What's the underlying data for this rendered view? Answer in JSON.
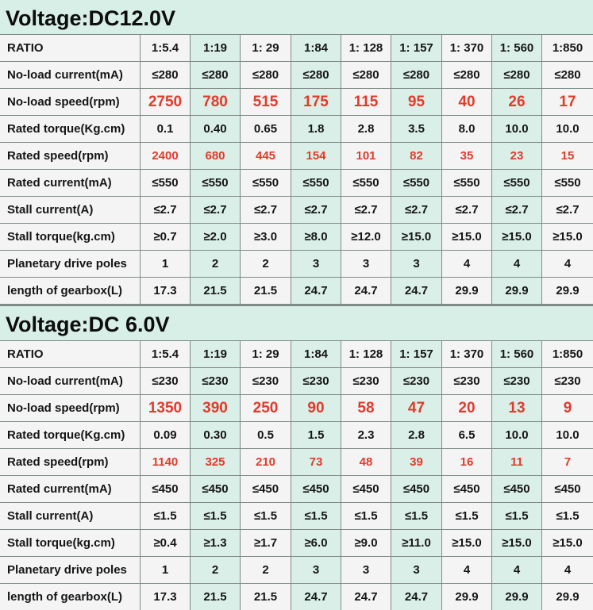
{
  "columns": [
    "1:5.4",
    "1:19",
    "1: 29",
    "1:84",
    "1: 128",
    "1: 157",
    "1: 370",
    "1: 560",
    "1:850"
  ],
  "sections": [
    {
      "title": "Voltage:DC12.0V",
      "rows": [
        {
          "label": "RATIO",
          "values": [
            "1:5.4",
            "1:19",
            "1: 29",
            "1:84",
            "1: 128",
            "1: 157",
            "1: 370",
            "1: 560",
            "1:850"
          ]
        },
        {
          "label": "No-load current(mA)",
          "values": [
            "≤280",
            "≤280",
            "≤280",
            "≤280",
            "≤280",
            "≤280",
            "≤280",
            "≤280",
            "≤280"
          ]
        },
        {
          "label": "No-load speed(rpm)",
          "values": [
            "2750",
            "780",
            "515",
            "175",
            "115",
            "95",
            "40",
            "26",
            "17"
          ]
        },
        {
          "label": "Rated torque(Kg.cm)",
          "values": [
            "0.1",
            "0.40",
            "0.65",
            "1.8",
            "2.8",
            "3.5",
            "8.0",
            "10.0",
            "10.0"
          ]
        },
        {
          "label": "Rated speed(rpm)",
          "values": [
            "2400",
            "680",
            "445",
            "154",
            "101",
            "82",
            "35",
            "23",
            "15"
          ]
        },
        {
          "label": "Rated current(mA)",
          "values": [
            "≤550",
            "≤550",
            "≤550",
            "≤550",
            "≤550",
            "≤550",
            "≤550",
            "≤550",
            "≤550"
          ]
        },
        {
          "label": "Stall current(A)",
          "values": [
            "≤2.7",
            "≤2.7",
            "≤2.7",
            "≤2.7",
            "≤2.7",
            "≤2.7",
            "≤2.7",
            "≤2.7",
            "≤2.7"
          ]
        },
        {
          "label": "Stall torque(kg.cm)",
          "values": [
            "≥0.7",
            "≥2.0",
            "≥3.0",
            "≥8.0",
            "≥12.0",
            "≥15.0",
            "≥15.0",
            "≥15.0",
            "≥15.0"
          ]
        },
        {
          "label": "Planetary drive poles",
          "values": [
            "1",
            "2",
            "2",
            "3",
            "3",
            "3",
            "4",
            "4",
            "4"
          ]
        },
        {
          "label": "length of gearbox(L)",
          "values": [
            "17.3",
            "21.5",
            "21.5",
            "24.7",
            "24.7",
            "24.7",
            "29.9",
            "29.9",
            "29.9"
          ]
        }
      ]
    },
    {
      "title": "Voltage:DC 6.0V",
      "rows": [
        {
          "label": "RATIO",
          "values": [
            "1:5.4",
            "1:19",
            "1: 29",
            "1:84",
            "1: 128",
            "1: 157",
            "1: 370",
            "1: 560",
            "1:850"
          ]
        },
        {
          "label": "No-load current(mA)",
          "values": [
            "≤230",
            "≤230",
            "≤230",
            "≤230",
            "≤230",
            "≤230",
            "≤230",
            "≤230",
            "≤230"
          ]
        },
        {
          "label": "No-load speed(rpm)",
          "values": [
            "1350",
            "390",
            "250",
            "90",
            "58",
            "47",
            "20",
            "13",
            "9"
          ]
        },
        {
          "label": "Rated torque(Kg.cm)",
          "values": [
            "0.09",
            "0.30",
            "0.5",
            "1.5",
            "2.3",
            "2.8",
            "6.5",
            "10.0",
            "10.0"
          ]
        },
        {
          "label": "Rated speed(rpm)",
          "values": [
            "1140",
            "325",
            "210",
            "73",
            "48",
            "39",
            "16",
            "11",
            "7"
          ]
        },
        {
          "label": "Rated current(mA)",
          "values": [
            "≤450",
            "≤450",
            "≤450",
            "≤450",
            "≤450",
            "≤450",
            "≤450",
            "≤450",
            "≤450"
          ]
        },
        {
          "label": "Stall current(A)",
          "values": [
            "≤1.5",
            "≤1.5",
            "≤1.5",
            "≤1.5",
            "≤1.5",
            "≤1.5",
            "≤1.5",
            "≤1.5",
            "≤1.5"
          ]
        },
        {
          "label": "Stall torque(kg.cm)",
          "values": [
            "≥0.4",
            "≥1.3",
            "≥1.7",
            "≥6.0",
            "≥9.0",
            "≥11.0",
            "≥15.0",
            "≥15.0",
            "≥15.0"
          ]
        },
        {
          "label": "Planetary drive poles",
          "values": [
            "1",
            "2",
            "2",
            "3",
            "3",
            "3",
            "4",
            "4",
            "4"
          ]
        },
        {
          "label": "length of gearbox(L)",
          "values": [
            "17.3",
            "21.5",
            "21.5",
            "24.7",
            "24.7",
            "24.7",
            "29.9",
            "29.9",
            "29.9"
          ]
        }
      ]
    }
  ],
  "colors": {
    "red_value": "#e23a2b",
    "mint_band": "#d9efe7",
    "light_band": "#f4f4f4",
    "grid": "#7f8a86"
  }
}
